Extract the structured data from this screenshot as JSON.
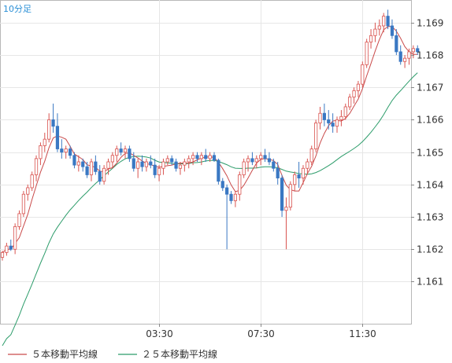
{
  "chart_data": {
    "type": "candlestick",
    "timeframe_label": "10分足",
    "y_ticks": [
      "1.161",
      "1.162",
      "1.163",
      "1.164",
      "1.165",
      "1.166",
      "1.167",
      "1.168",
      "1.169"
    ],
    "y_tick_values": [
      1.161,
      1.162,
      1.163,
      1.164,
      1.165,
      1.166,
      1.167,
      1.168,
      1.169
    ],
    "ylim": [
      1.1597,
      1.1697
    ],
    "x_ticks": [
      "03:30",
      "07:30",
      "11:30"
    ],
    "x_tick_index": [
      37,
      61,
      85
    ],
    "grid": true,
    "up_color": "#d9534f",
    "down_color": "#3a78c3",
    "legend": [
      {
        "label": "５本移動平均線",
        "color": "#c94a4a"
      },
      {
        "label": "２５本移動平均線",
        "color": "#2c9c6a"
      }
    ],
    "candles": [
      [
        1.16175,
        1.16195,
        1.16165,
        1.1619
      ],
      [
        1.1619,
        1.1622,
        1.1618,
        1.1621
      ],
      [
        1.1621,
        1.1623,
        1.16195,
        1.162
      ],
      [
        1.162,
        1.1628,
        1.16185,
        1.1627
      ],
      [
        1.1627,
        1.1632,
        1.1626,
        1.1631
      ],
      [
        1.1631,
        1.1638,
        1.163,
        1.1637
      ],
      [
        1.1637,
        1.164,
        1.1635,
        1.1639
      ],
      [
        1.1639,
        1.1644,
        1.1638,
        1.1643
      ],
      [
        1.1643,
        1.1649,
        1.1641,
        1.1648
      ],
      [
        1.1648,
        1.1653,
        1.1646,
        1.1652
      ],
      [
        1.1652,
        1.1656,
        1.165,
        1.1654
      ],
      [
        1.1654,
        1.1662,
        1.1653,
        1.166
      ],
      [
        1.166,
        1.1665,
        1.1656,
        1.1658
      ],
      [
        1.1658,
        1.1662,
        1.165,
        1.1651
      ],
      [
        1.1651,
        1.1654,
        1.1648,
        1.165
      ],
      [
        1.165,
        1.1652,
        1.1648,
        1.1651
      ],
      [
        1.1651,
        1.1652,
        1.1648,
        1.1649
      ],
      [
        1.1649,
        1.165,
        1.1645,
        1.1646
      ],
      [
        1.1646,
        1.1649,
        1.1644,
        1.1647
      ],
      [
        1.1647,
        1.1648,
        1.1644,
        1.16455
      ],
      [
        1.16455,
        1.1647,
        1.1642,
        1.1643
      ],
      [
        1.1643,
        1.1648,
        1.1641,
        1.1647
      ],
      [
        1.1647,
        1.1649,
        1.1643,
        1.1644
      ],
      [
        1.1644,
        1.1646,
        1.164,
        1.1641
      ],
      [
        1.1641,
        1.1646,
        1.164,
        1.1645
      ],
      [
        1.1645,
        1.1648,
        1.1643,
        1.1647
      ],
      [
        1.1647,
        1.165,
        1.1645,
        1.1649
      ],
      [
        1.1649,
        1.1652,
        1.1647,
        1.1651
      ],
      [
        1.1651,
        1.1653,
        1.1649,
        1.165
      ],
      [
        1.165,
        1.1652,
        1.1648,
        1.1651
      ],
      [
        1.1651,
        1.1652,
        1.1647,
        1.1648
      ],
      [
        1.1648,
        1.165,
        1.1644,
        1.1645
      ],
      [
        1.1645,
        1.1648,
        1.1642,
        1.1647
      ],
      [
        1.1647,
        1.1649,
        1.1644,
        1.16455
      ],
      [
        1.16455,
        1.1648,
        1.1644,
        1.1647
      ],
      [
        1.1647,
        1.1649,
        1.1645,
        1.1646
      ],
      [
        1.1646,
        1.1648,
        1.1642,
        1.1643
      ],
      [
        1.1643,
        1.1646,
        1.1641,
        1.1645
      ],
      [
        1.1645,
        1.1648,
        1.1643,
        1.1647
      ],
      [
        1.1647,
        1.1649,
        1.1646,
        1.1648
      ],
      [
        1.1648,
        1.1649,
        1.1646,
        1.1647
      ],
      [
        1.1647,
        1.1648,
        1.1644,
        1.1645
      ],
      [
        1.1645,
        1.1647,
        1.1643,
        1.1646
      ],
      [
        1.1646,
        1.1648,
        1.1644,
        1.1647
      ],
      [
        1.1647,
        1.1649,
        1.1645,
        1.1648
      ],
      [
        1.1648,
        1.165,
        1.1646,
        1.1649
      ],
      [
        1.1649,
        1.165,
        1.1647,
        1.1648
      ],
      [
        1.1648,
        1.165,
        1.1646,
        1.1649
      ],
      [
        1.1649,
        1.1651,
        1.1647,
        1.1648
      ],
      [
        1.1648,
        1.165,
        1.1647,
        1.1649
      ],
      [
        1.1649,
        1.165,
        1.1647,
        1.16475
      ],
      [
        1.16475,
        1.1648,
        1.164,
        1.1641
      ],
      [
        1.1641,
        1.1642,
        1.1638,
        1.1639
      ],
      [
        1.1639,
        1.164,
        1.162,
        1.1637
      ],
      [
        1.1637,
        1.1638,
        1.1634,
        1.1635
      ],
      [
        1.1635,
        1.1638,
        1.1633,
        1.1637
      ],
      [
        1.1637,
        1.1644,
        1.1635,
        1.1643
      ],
      [
        1.1643,
        1.1648,
        1.1642,
        1.1647
      ],
      [
        1.1647,
        1.1649,
        1.1644,
        1.1648
      ],
      [
        1.1648,
        1.165,
        1.1646,
        1.1647
      ],
      [
        1.1647,
        1.1649,
        1.1645,
        1.1648
      ],
      [
        1.1648,
        1.165,
        1.1646,
        1.1649
      ],
      [
        1.1649,
        1.1651,
        1.1647,
        1.1648
      ],
      [
        1.1648,
        1.165,
        1.1646,
        1.1647
      ],
      [
        1.1647,
        1.1648,
        1.1644,
        1.1645
      ],
      [
        1.1645,
        1.1647,
        1.164,
        1.1642
      ],
      [
        1.1642,
        1.1643,
        1.163,
        1.1632
      ],
      [
        1.1632,
        1.1636,
        1.162,
        1.1633
      ],
      [
        1.1633,
        1.1641,
        1.1632,
        1.164
      ],
      [
        1.164,
        1.1644,
        1.1638,
        1.1643
      ],
      [
        1.1643,
        1.1647,
        1.1639,
        1.1642
      ],
      [
        1.1642,
        1.1646,
        1.164,
        1.1645
      ],
      [
        1.1645,
        1.1648,
        1.1643,
        1.1647
      ],
      [
        1.1647,
        1.1652,
        1.1646,
        1.1651
      ],
      [
        1.1651,
        1.166,
        1.165,
        1.1659
      ],
      [
        1.1659,
        1.1664,
        1.1657,
        1.1662
      ],
      [
        1.1662,
        1.1665,
        1.1658,
        1.166
      ],
      [
        1.166,
        1.1663,
        1.1657,
        1.1659
      ],
      [
        1.1659,
        1.1662,
        1.1656,
        1.1658
      ],
      [
        1.1658,
        1.1661,
        1.1656,
        1.166
      ],
      [
        1.166,
        1.1663,
        1.1658,
        1.1661
      ],
      [
        1.1661,
        1.1665,
        1.166,
        1.1664
      ],
      [
        1.1664,
        1.1668,
        1.1663,
        1.1667
      ],
      [
        1.1667,
        1.167,
        1.1665,
        1.1669
      ],
      [
        1.1669,
        1.1672,
        1.1667,
        1.1671
      ],
      [
        1.1671,
        1.1678,
        1.167,
        1.1677
      ],
      [
        1.1677,
        1.1685,
        1.1676,
        1.1684
      ],
      [
        1.1684,
        1.1688,
        1.1682,
        1.1686
      ],
      [
        1.1686,
        1.169,
        1.1684,
        1.1688
      ],
      [
        1.1688,
        1.1691,
        1.1686,
        1.1689
      ],
      [
        1.1689,
        1.1693,
        1.1687,
        1.1692
      ],
      [
        1.1692,
        1.1694,
        1.1688,
        1.1689
      ],
      [
        1.1689,
        1.1691,
        1.1685,
        1.1686
      ],
      [
        1.1686,
        1.1688,
        1.168,
        1.1681
      ],
      [
        1.1681,
        1.1683,
        1.1677,
        1.1678
      ],
      [
        1.1678,
        1.168,
        1.1676,
        1.1679
      ],
      [
        1.1679,
        1.1682,
        1.1677,
        1.1681
      ],
      [
        1.1681,
        1.1683,
        1.1679,
        1.1682
      ],
      [
        1.1682,
        1.1683,
        1.168,
        1.1681
      ]
    ]
  }
}
